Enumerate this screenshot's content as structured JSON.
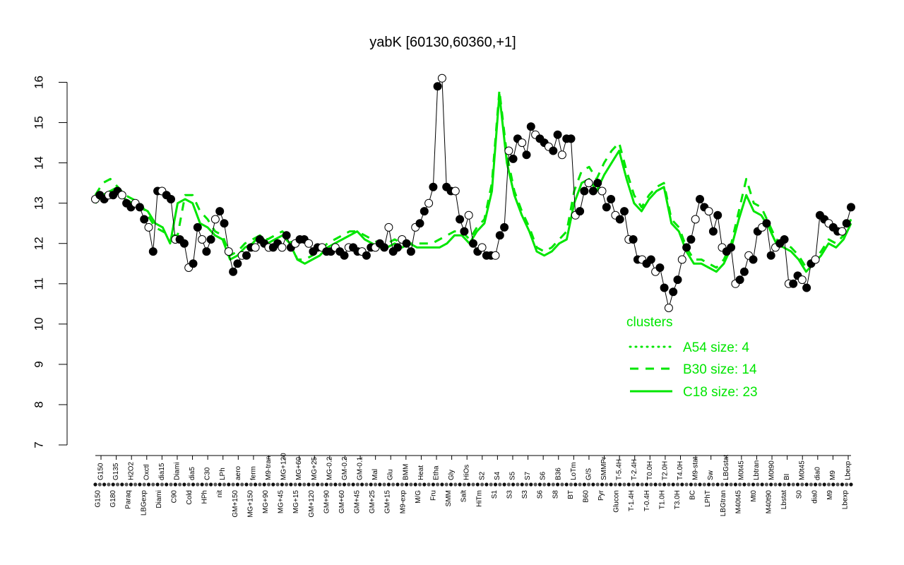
{
  "chart_data": {
    "type": "line",
    "title": "yabK [60130,60360,+1]",
    "xlabel": "",
    "ylabel": "",
    "ylim": [
      7,
      16
    ],
    "y_ticks": [
      7,
      8,
      9,
      10,
      11,
      12,
      13,
      14,
      15,
      16
    ],
    "grid": false,
    "legend_position": "bottom-right",
    "legend": {
      "title": "clusters",
      "entries": [
        {
          "label": "A54 size: 4",
          "style": "dotted"
        },
        {
          "label": "B30 size: 14",
          "style": "dashed"
        },
        {
          "label": "C18 size: 23",
          "style": "solid"
        }
      ]
    },
    "x_labels_top": [
      "G150",
      "G135",
      "H2O2",
      "Oxctl",
      "dia15",
      "Diami",
      "dia5",
      "C30",
      "LPh",
      "aero",
      "ferm",
      "M9-tran",
      "MG+120",
      "MG+60",
      "MG+25",
      "MG-0.2",
      "GM-0.2",
      "GM-0.1",
      "Mal",
      "Glu",
      "BMM",
      "Heat",
      "Etha",
      "Gly",
      "HiOs",
      "S2",
      "S4",
      "S5",
      "S7",
      "S6",
      "B36",
      "LoTm",
      "G/S",
      "SMMPr",
      "T-5.4H",
      "T-2.4H",
      "T0.0H",
      "T2.0H",
      "T4.0H",
      "M9-stat",
      "Sw",
      "LBGstat",
      "M0t45",
      "Lbtran",
      "M0t90",
      "BI",
      "M0t45",
      "dia0",
      "M9",
      "Lbexp"
    ],
    "x_labels_bottom": [
      "G150",
      "G180",
      "Paraq",
      "LBGexp",
      "Diami",
      "C90",
      "Cold",
      "HPh",
      "nit",
      "GM+150",
      "MG+150",
      "MG+90",
      "MG+45",
      "MG+15",
      "GM+120",
      "GM+90",
      "GM+60",
      "GM+45",
      "GM+25",
      "GM+15",
      "M9-exp",
      "M/G",
      "Fru",
      "SMM",
      "Salt",
      "HiTm",
      "S1",
      "S3",
      "S3",
      "S6",
      "S8",
      "BT",
      "B60",
      "Pyr",
      "Glucon",
      "T-1.4H",
      "T-0.4H",
      "T1.0H",
      "T3.0H",
      "BC",
      "LPhT",
      "LBGtran",
      "M40t45",
      "Mt0",
      "M40t90",
      "Lbstat",
      "S0",
      "dia0",
      "M9",
      "Lbexp"
    ],
    "series": [
      {
        "style": "points",
        "values": [
          13.1,
          13.2,
          13.1,
          13.2,
          13.2,
          13.3,
          13.2,
          13.0,
          12.9,
          13.0,
          12.9,
          12.6,
          12.4,
          11.8,
          13.3,
          13.3,
          13.2,
          13.1,
          12.1,
          12.1,
          12.0,
          11.4,
          11.5,
          12.4,
          12.1,
          11.8,
          12.1,
          12.6,
          12.8,
          12.5,
          11.8,
          11.3,
          11.5,
          11.7,
          11.7,
          11.9,
          11.9,
          12.1,
          12.0,
          11.9,
          11.9,
          12.0,
          11.9,
          12.2,
          11.9,
          12.0,
          12.1,
          12.1,
          12.0,
          11.8,
          11.9,
          11.9,
          11.8,
          11.8,
          11.9,
          11.8,
          11.7,
          11.9,
          11.9,
          11.8,
          11.8,
          11.7,
          11.9,
          11.9,
          12.0,
          11.9,
          12.4,
          11.8,
          11.9,
          12.1,
          12.0,
          11.8,
          12.4,
          12.5,
          12.8,
          13.0,
          13.4,
          15.9,
          16.1,
          13.4,
          13.3,
          13.3,
          12.6,
          12.3,
          12.7,
          12.0,
          11.8,
          11.9,
          11.7,
          11.7,
          11.7,
          12.2,
          12.4,
          14.3,
          14.1,
          14.6,
          14.5,
          14.2,
          14.9,
          14.7,
          14.6,
          14.5,
          14.4,
          14.3,
          14.7,
          14.2,
          14.6,
          14.6,
          12.7,
          12.8,
          13.3,
          13.5,
          13.3,
          13.5,
          13.3,
          12.9,
          13.1,
          12.7,
          12.6,
          12.8,
          12.1,
          12.1,
          11.6,
          11.6,
          11.5,
          11.6,
          11.3,
          11.4,
          10.9,
          10.4,
          10.8,
          11.1,
          11.6,
          11.9,
          12.1,
          12.6,
          13.1,
          12.9,
          12.8,
          12.3,
          12.7,
          11.9,
          11.8,
          11.9,
          11.0,
          11.1,
          11.3,
          11.7,
          11.6,
          12.3,
          12.4,
          12.5,
          11.7,
          11.9,
          12.0,
          12.1,
          11.0,
          11.0,
          11.2,
          11.1,
          10.9,
          11.5,
          11.6,
          12.7,
          12.6,
          12.5,
          12.4,
          12.3,
          12.3,
          12.5,
          12.9
        ]
      },
      {
        "name": "C18 size: 23",
        "style": "solid",
        "values": [
          13.0,
          13.2,
          13.3,
          13.4,
          13.1,
          13.0,
          12.9,
          12.8,
          12.5,
          12.4,
          12.0,
          13.0,
          13.1,
          13.0,
          12.5,
          12.4,
          12.2,
          12.1,
          11.6,
          11.7,
          11.9,
          12.0,
          12.2,
          12.0,
          12.1,
          12.2,
          12.0,
          11.6,
          11.5,
          11.6,
          11.7,
          11.9,
          12.0,
          12.1,
          12.2,
          12.3,
          12.1,
          12.0,
          11.9,
          11.9,
          12.0,
          11.9,
          12.0,
          11.9,
          11.9,
          11.9,
          11.9,
          12.0,
          12.2,
          12.2,
          12.0,
          12.3,
          12.5,
          13.3,
          15.7,
          14.0,
          13.2,
          12.7,
          12.3,
          11.8,
          11.7,
          11.8,
          12.0,
          12.1,
          13.0,
          13.5,
          13.6,
          13.3,
          13.7,
          14.0,
          14.3,
          13.6,
          13.0,
          12.8,
          13.1,
          13.3,
          13.4,
          12.5,
          12.3,
          11.8,
          11.5,
          11.5,
          11.4,
          11.3,
          11.5,
          11.9,
          12.6,
          13.2,
          12.8,
          12.7,
          12.4,
          12.0,
          11.9,
          11.8,
          11.6,
          11.3,
          11.5,
          11.7,
          12.0,
          11.9,
          12.1,
          12.5
        ]
      },
      {
        "name": "B30 size: 14",
        "style": "dashed",
        "values": [
          13.2,
          13.5,
          13.6,
          13.4,
          13.2,
          13.1,
          13.0,
          12.7,
          12.4,
          12.3,
          12.2,
          12.2,
          13.2,
          13.2,
          12.8,
          12.6,
          12.3,
          12.2,
          11.7,
          11.8,
          12.0,
          12.1,
          12.2,
          12.1,
          12.2,
          12.3,
          12.1,
          11.6,
          11.6,
          11.7,
          11.8,
          12.0,
          12.1,
          12.2,
          12.3,
          12.3,
          12.2,
          12.1,
          12.0,
          12.0,
          12.1,
          12.0,
          12.0,
          12.0,
          12.0,
          12.0,
          12.1,
          12.2,
          12.3,
          12.3,
          12.1,
          12.4,
          12.6,
          13.5,
          15.8,
          14.2,
          13.3,
          12.8,
          12.4,
          11.9,
          11.8,
          11.9,
          12.1,
          12.3,
          13.3,
          13.8,
          13.9,
          13.6,
          14.0,
          14.3,
          14.5,
          13.8,
          13.2,
          12.9,
          13.2,
          13.4,
          13.5,
          12.6,
          12.4,
          11.9,
          11.6,
          11.6,
          11.5,
          11.4,
          11.6,
          12.0,
          12.8,
          13.6,
          13.0,
          12.9,
          12.5,
          12.1,
          12.0,
          11.9,
          11.7,
          11.4,
          11.6,
          11.8,
          12.1,
          12.0,
          12.2,
          12.6
        ]
      }
    ]
  }
}
